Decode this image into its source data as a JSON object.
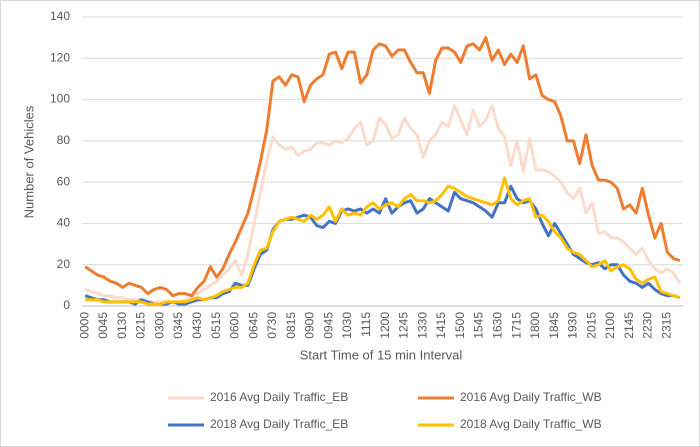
{
  "chart_data": {
    "type": "line",
    "xlabel": "Start Time of 15 min Interval",
    "ylabel": "Number of Vehicles",
    "categories": [
      "0000",
      null,
      null,
      "0045",
      null,
      null,
      "0130",
      null,
      null,
      "0215",
      null,
      null,
      "0300",
      null,
      null,
      "0345",
      null,
      null,
      "0430",
      null,
      null,
      "0515",
      null,
      null,
      "0600",
      null,
      null,
      "0645",
      null,
      null,
      "0730",
      null,
      null,
      "0815",
      null,
      null,
      "0900",
      null,
      null,
      "0945",
      null,
      null,
      "1030",
      null,
      null,
      "1115",
      null,
      null,
      "1200",
      null,
      null,
      "1245",
      null,
      null,
      "1330",
      null,
      null,
      "1415",
      null,
      null,
      "1500",
      null,
      null,
      "1545",
      null,
      null,
      "1630",
      null,
      null,
      "1715",
      null,
      null,
      "1800",
      null,
      null,
      "1845",
      null,
      null,
      "1930",
      null,
      null,
      "2015",
      null,
      null,
      "2100",
      null,
      null,
      "2145",
      null,
      null,
      "2230",
      null,
      null,
      "2315",
      null,
      null
    ],
    "series": [
      {
        "name": "2016 Avg Daily Traffic_EB",
        "color": "#f9dccd",
        "values": [
          8,
          7,
          6,
          5,
          5,
          4,
          4,
          3,
          3,
          3,
          2,
          2,
          2,
          2,
          2,
          2,
          3,
          4,
          6,
          8,
          10,
          12,
          15,
          18,
          22,
          15,
          25,
          40,
          55,
          70,
          82,
          78,
          76,
          77,
          73,
          75,
          76,
          79,
          79,
          78,
          80,
          79,
          81,
          86,
          89,
          78,
          80,
          91,
          88,
          81,
          83,
          91,
          86,
          83,
          72,
          80,
          83,
          89,
          87,
          97,
          90,
          83,
          95,
          87,
          90,
          97,
          86,
          82,
          68,
          80,
          65,
          81,
          66,
          66,
          65,
          63,
          60,
          55,
          52,
          57,
          45,
          50,
          35,
          36,
          33,
          33,
          31,
          28,
          25,
          28,
          22,
          18,
          16,
          18,
          16,
          11
        ]
      },
      {
        "name": "2016 Avg Daily Traffic_WB",
        "color": "#ed7d31",
        "values": [
          19,
          17,
          15,
          14,
          12,
          11,
          9,
          11,
          10,
          9,
          6,
          8,
          9,
          8,
          5,
          6,
          6,
          5,
          9,
          12,
          19,
          14,
          18,
          25,
          31,
          38,
          45,
          57,
          70,
          85,
          109,
          111,
          107,
          112,
          111,
          99,
          107,
          110,
          112,
          122,
          123,
          115,
          123,
          123,
          108,
          112,
          124,
          127,
          126,
          121,
          124,
          124,
          118,
          113,
          113,
          103,
          119,
          125,
          125,
          123,
          118,
          126,
          127,
          124,
          130,
          119,
          124,
          117,
          122,
          118,
          126,
          110,
          112,
          102,
          100,
          99,
          92,
          80,
          80,
          69,
          83,
          68,
          61,
          61,
          60,
          57,
          47,
          49,
          45,
          57,
          44,
          33,
          40,
          26,
          23,
          22
        ]
      },
      {
        "name": "2018 Avg Daily Traffic_EB",
        "color": "#4472c4",
        "values": [
          5,
          4,
          3,
          3,
          2,
          2,
          2,
          2,
          1,
          3,
          2,
          1,
          1,
          1,
          2,
          1,
          1,
          2,
          3,
          3,
          4,
          4,
          6,
          7,
          11,
          10,
          10,
          18,
          25,
          27,
          37,
          41,
          42,
          42,
          43,
          44,
          43,
          39,
          38,
          41,
          40,
          46,
          47,
          46,
          47,
          45,
          47,
          45,
          52,
          45,
          48,
          50,
          51,
          45,
          47,
          52,
          50,
          48,
          46,
          55,
          52,
          51,
          50,
          48,
          46,
          43,
          50,
          50,
          58,
          52,
          50,
          51,
          47,
          40,
          34,
          40,
          35,
          30,
          25,
          23,
          21,
          20,
          21,
          18,
          20,
          20,
          15,
          12,
          11,
          9,
          11,
          8,
          6,
          5,
          5,
          4
        ]
      },
      {
        "name": "2018 Avg Daily Traffic_WB",
        "color": "#ffc000",
        "values": [
          3,
          3,
          3,
          2,
          2,
          2,
          2,
          2,
          2,
          2,
          1,
          1,
          1,
          2,
          2,
          2,
          2,
          3,
          4,
          3,
          4,
          5,
          7,
          8,
          9,
          9,
          11,
          20,
          27,
          28,
          36,
          41,
          42,
          43,
          42,
          41,
          44,
          42,
          44,
          48,
          41,
          47,
          44,
          45,
          44,
          48,
          50,
          47,
          49,
          50,
          48,
          52,
          54,
          51,
          51,
          50,
          51,
          54,
          58,
          57,
          55,
          53,
          52,
          51,
          50,
          49,
          51,
          62,
          52,
          49,
          51,
          52,
          43,
          44,
          41,
          36,
          33,
          28,
          26,
          25,
          22,
          19,
          20,
          22,
          17,
          19,
          20,
          18,
          13,
          11,
          13,
          14,
          7,
          6,
          5,
          4
        ]
      }
    ],
    "ylim": [
      0,
      140
    ],
    "yticks": [
      0,
      20,
      40,
      60,
      80,
      100,
      120,
      140
    ],
    "grid": true,
    "legend": "bottom"
  }
}
